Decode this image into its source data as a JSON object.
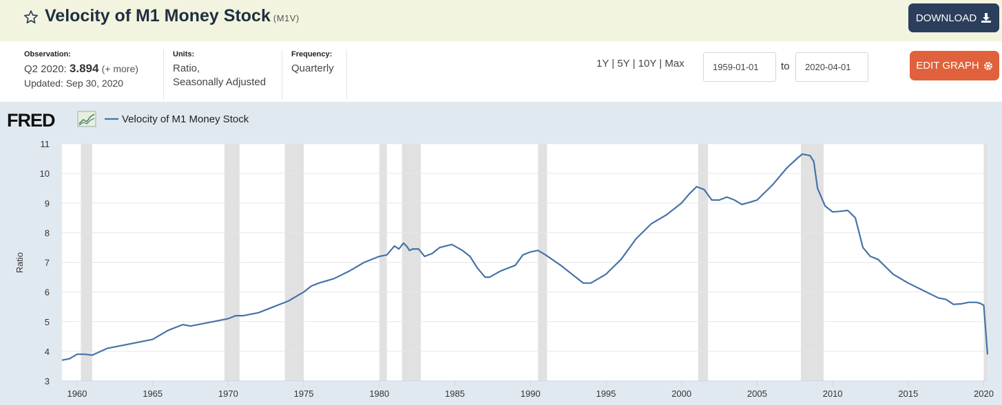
{
  "header": {
    "title": "Velocity of M1 Money Stock",
    "series_id": "(M1V)",
    "download_label": "DOWNLOAD"
  },
  "meta": {
    "observation_label": "Observation:",
    "observation_period": "Q2 2020:",
    "observation_value": "3.894",
    "observation_more": "(+ more)",
    "updated": "Updated: Sep 30, 2020",
    "units_label": "Units:",
    "units_line1": "Ratio,",
    "units_line2": "Seasonally Adjusted",
    "frequency_label": "Frequency:",
    "frequency_value": "Quarterly",
    "range_1y": "1Y",
    "range_5y": "5Y",
    "range_10y": "10Y",
    "range_max": "Max",
    "separator": "|",
    "start_date": "1959-01-01",
    "to_label": "to",
    "end_date": "2020-04-01",
    "edit_label": "EDIT GRAPH"
  },
  "colors": {
    "series": "#4572a7",
    "recession": "#e1e1e1",
    "title_bg": "#f2f4e0",
    "chart_bg": "#e1e9f0",
    "download_bg": "#2b3e5c",
    "edit_bg": "#e0613b"
  },
  "chart_data": {
    "type": "line",
    "logo": "FRED",
    "legend": "Velocity of M1 Money Stock",
    "ylabel": "Ratio",
    "xlabel": "",
    "ylim": [
      3,
      11
    ],
    "xlim": [
      1959.0,
      2020.25
    ],
    "yticks": [
      3,
      4,
      5,
      6,
      7,
      8,
      9,
      10,
      11
    ],
    "xticks": [
      1960,
      1965,
      1970,
      1975,
      1980,
      1985,
      1990,
      1995,
      2000,
      2005,
      2010,
      2015,
      2020
    ],
    "grid": true,
    "recessions": [
      [
        1960.25,
        1961.0
      ],
      [
        1969.75,
        1970.75
      ],
      [
        1973.75,
        1975.0
      ],
      [
        1980.0,
        1980.5
      ],
      [
        1981.5,
        1982.75
      ],
      [
        1990.5,
        1991.1
      ],
      [
        2001.1,
        2001.75
      ],
      [
        2007.9,
        2009.4
      ],
      [
        2020.0,
        2020.25
      ]
    ],
    "series": [
      {
        "name": "Velocity of M1 Money Stock",
        "x": [
          1959.0,
          1959.5,
          1960.0,
          1960.5,
          1961.0,
          1962.0,
          1963.0,
          1964.0,
          1965.0,
          1966.0,
          1967.0,
          1967.5,
          1968.0,
          1969.0,
          1970.0,
          1970.5,
          1971.0,
          1972.0,
          1973.0,
          1973.5,
          1974.0,
          1975.0,
          1975.5,
          1976.0,
          1977.0,
          1978.0,
          1979.0,
          1980.0,
          1980.5,
          1981.0,
          1981.3,
          1981.6,
          1981.8,
          1982.0,
          1982.2,
          1982.6,
          1983.0,
          1983.5,
          1984.0,
          1984.8,
          1985.5,
          1986.0,
          1986.5,
          1987.0,
          1987.3,
          1988.0,
          1989.0,
          1989.5,
          1990.0,
          1990.5,
          1991.0,
          1992.0,
          1993.0,
          1993.5,
          1994.0,
          1995.0,
          1996.0,
          1997.0,
          1998.0,
          1999.0,
          2000.0,
          2000.5,
          2001.0,
          2001.5,
          2002.0,
          2002.5,
          2003.0,
          2003.5,
          2004.0,
          2005.0,
          2006.0,
          2007.0,
          2007.75,
          2008.0,
          2008.5,
          2008.75,
          2009.0,
          2009.5,
          2010.0,
          2010.5,
          2011.0,
          2011.5,
          2012.0,
          2012.5,
          2013.0,
          2014.0,
          2015.0,
          2016.0,
          2017.0,
          2017.5,
          2018.0,
          2018.5,
          2019.0,
          2019.5,
          2019.75,
          2020.0,
          2020.25
        ],
        "values": [
          3.7,
          3.75,
          3.9,
          3.9,
          3.87,
          4.1,
          4.2,
          4.3,
          4.4,
          4.7,
          4.9,
          4.85,
          4.9,
          5.0,
          5.1,
          5.2,
          5.2,
          5.3,
          5.5,
          5.6,
          5.7,
          6.0,
          6.2,
          6.3,
          6.45,
          6.7,
          7.0,
          7.2,
          7.25,
          7.55,
          7.45,
          7.65,
          7.55,
          7.4,
          7.45,
          7.45,
          7.2,
          7.3,
          7.5,
          7.6,
          7.4,
          7.2,
          6.8,
          6.5,
          6.5,
          6.7,
          6.9,
          7.25,
          7.35,
          7.4,
          7.25,
          6.9,
          6.5,
          6.3,
          6.3,
          6.6,
          7.1,
          7.8,
          8.3,
          8.6,
          9.0,
          9.3,
          9.55,
          9.45,
          9.1,
          9.1,
          9.2,
          9.1,
          8.95,
          9.1,
          9.6,
          10.2,
          10.55,
          10.65,
          10.6,
          10.4,
          9.5,
          8.9,
          8.7,
          8.72,
          8.75,
          8.5,
          7.5,
          7.2,
          7.1,
          6.6,
          6.3,
          6.05,
          5.8,
          5.75,
          5.58,
          5.6,
          5.65,
          5.65,
          5.62,
          5.55,
          3.894
        ]
      }
    ]
  }
}
